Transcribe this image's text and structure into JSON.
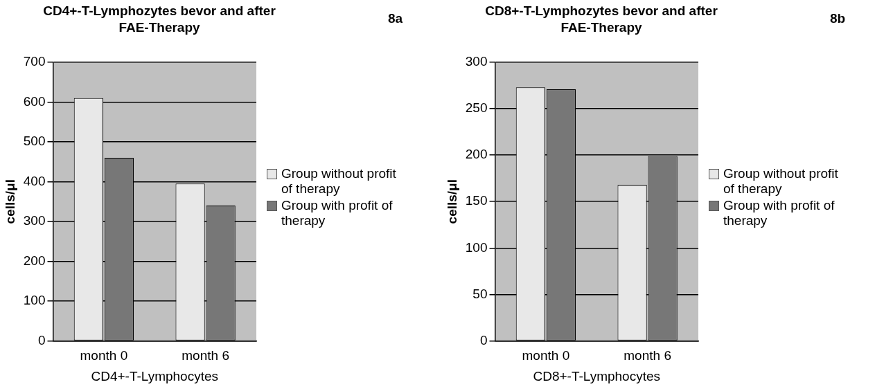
{
  "chart_data": [
    {
      "type": "bar",
      "title": "CD4+-T-Lymphozytes bevor and after FAE-Therapy",
      "xlabel": "CD4+-T-Lymphocytes",
      "ylabel": "cells/μl",
      "annotations": [
        "8a"
      ],
      "categories": [
        "month 0",
        "month 6"
      ],
      "series": [
        {
          "name": "Group without profit of therapy",
          "color": "#e8e8e8",
          "values": [
            610,
            395
          ]
        },
        {
          "name": "Group with profit of therapy",
          "color": "#777777",
          "values": [
            460,
            340
          ]
        }
      ],
      "ylim": [
        0,
        700
      ],
      "yticks": [
        0,
        100,
        200,
        300,
        400,
        500,
        600,
        700
      ],
      "grid": "y",
      "legend": "right"
    },
    {
      "type": "bar",
      "title": "CD8+-T-Lymphozytes bevor and after FAE-Therapy",
      "xlabel": "CD8+-T-Lymphocytes",
      "ylabel": "cells/μl",
      "annotations": [
        "8b"
      ],
      "categories": [
        "month 0",
        "month 6"
      ],
      "series": [
        {
          "name": "Group without profit of therapy",
          "color": "#e8e8e8",
          "values": [
            273,
            168
          ]
        },
        {
          "name": "Group with profit of therapy",
          "color": "#777777",
          "values": [
            271,
            199
          ]
        }
      ],
      "ylim": [
        0,
        300
      ],
      "yticks": [
        0,
        50,
        100,
        150,
        200,
        250,
        300
      ],
      "grid": "y",
      "legend": "right"
    }
  ]
}
